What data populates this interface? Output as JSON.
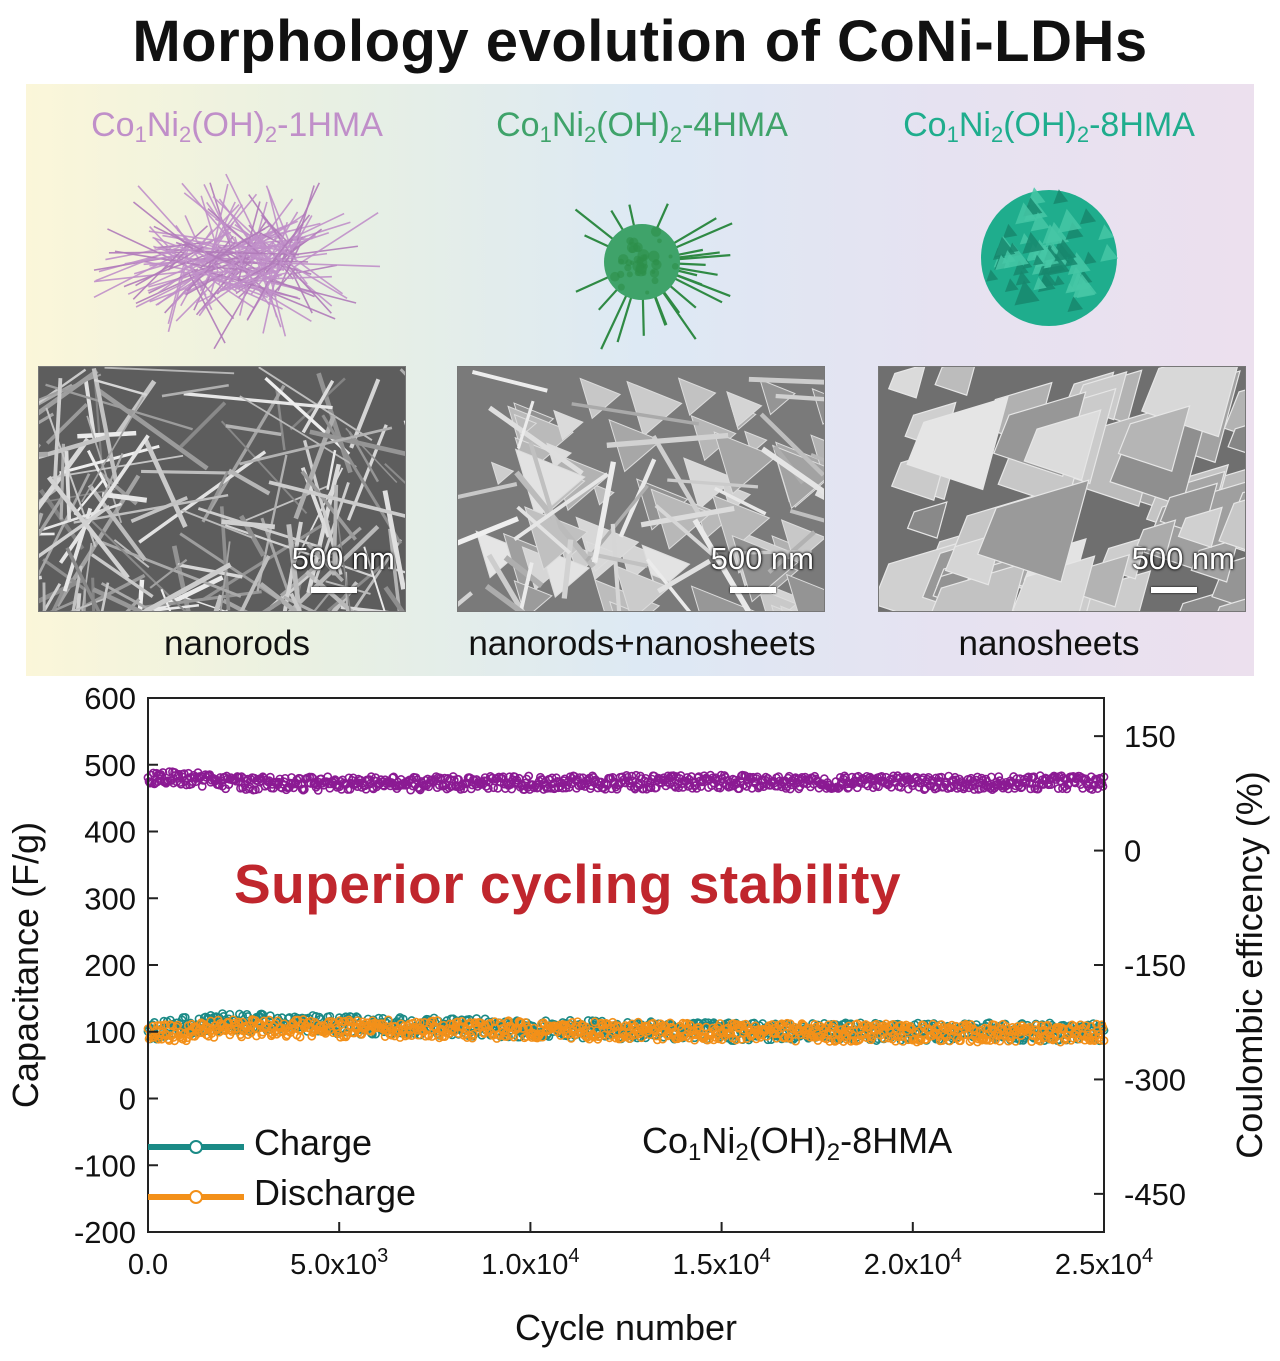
{
  "title": "Morphology evolution of CoNi-LDHs",
  "samples": [
    {
      "prefix": "Co",
      "s1": "1",
      "mid": "Ni",
      "s2": "2",
      "par": "(OH)",
      "s3": "2",
      "suffix": "-1HMA",
      "color": "#c08fc9",
      "morphology": "nanorods",
      "scale_bar": "500 nm"
    },
    {
      "prefix": "Co",
      "s1": "1",
      "mid": "Ni",
      "s2": "2",
      "par": "(OH)",
      "s3": "2",
      "suffix": "-4HMA",
      "color": "#3fa36a",
      "morphology": "nanorods+nanosheets",
      "scale_bar": "500 nm"
    },
    {
      "prefix": "Co",
      "s1": "1",
      "mid": "Ni",
      "s2": "2",
      "par": "(OH)",
      "s3": "2",
      "suffix": "-8HMA",
      "color": "#1fad8d",
      "morphology": "nanosheets",
      "scale_bar": "500 nm"
    }
  ],
  "annotation": "Superior cycling stability",
  "sample_label": {
    "prefix": "Co",
    "s1": "1",
    "mid": "Ni",
    "s2": "2",
    "par": "(OH)",
    "s3": "2",
    "suffix": "-8HMA"
  },
  "legend": [
    {
      "label": "Charge",
      "color": "#1a8a86"
    },
    {
      "label": "Discharge",
      "color": "#f39019"
    }
  ],
  "chart_data": {
    "type": "scatter",
    "xlabel": "Cycle number",
    "ylabel": "Capacitance (F/g)",
    "y2label": "Coulombic efficency (%)",
    "xlim": [
      0,
      25000
    ],
    "ylim": [
      -200,
      600
    ],
    "y2lim": [
      -500,
      200
    ],
    "xticks": [
      "0.0",
      "5.0x10",
      "1.0x10",
      "1.5x10",
      "2.0x10",
      "2.5x10"
    ],
    "xtick_exponents": [
      "",
      "3",
      "4",
      "4",
      "4",
      "4"
    ],
    "xtick_values": [
      0,
      5000,
      10000,
      15000,
      20000,
      25000
    ],
    "yticks": [
      600,
      500,
      400,
      300,
      200,
      100,
      0,
      -100,
      -200
    ],
    "y2ticks": [
      150,
      0,
      -150,
      -300,
      -450
    ],
    "series": [
      {
        "name": "Charge",
        "axis": "left",
        "color": "#1a8a86",
        "x": [
          0,
          1000,
          2000,
          5000,
          10000,
          15000,
          20000,
          25000
        ],
        "values": [
          100,
          110,
          115,
          110,
          105,
          100,
          100,
          100
        ]
      },
      {
        "name": "Discharge",
        "axis": "left",
        "color": "#f39019",
        "x": [
          0,
          1000,
          2000,
          5000,
          10000,
          15000,
          20000,
          25000
        ],
        "values": [
          95,
          100,
          105,
          105,
          103,
          100,
          98,
          98
        ]
      },
      {
        "name": "",
        "axis": "right",
        "color": "#8b1a93",
        "x": [
          0,
          1000,
          2500,
          5000,
          10000,
          15000,
          20000,
          25000
        ],
        "values": [
          95,
          95,
          88,
          88,
          89,
          90,
          89,
          89
        ]
      }
    ]
  }
}
